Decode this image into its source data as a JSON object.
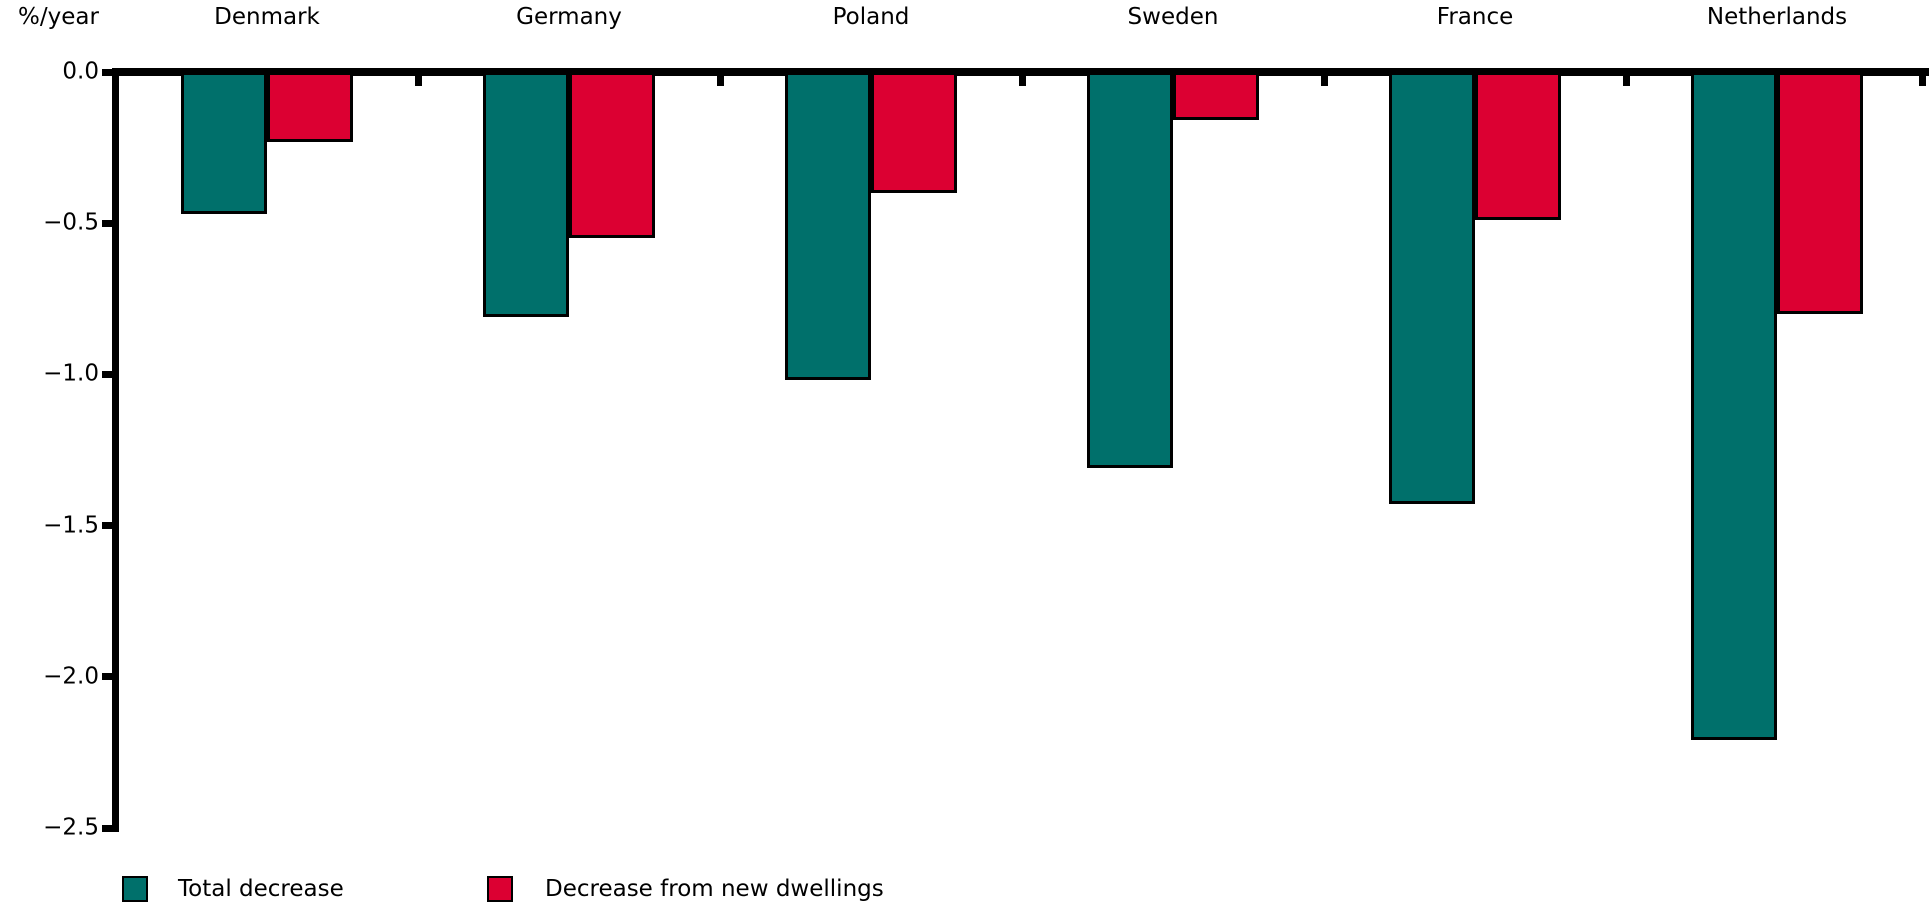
{
  "chart_data": {
    "type": "bar",
    "title": "",
    "ylabel": "%/year",
    "xlabel": "",
    "ylim": [
      -2.5,
      0.0
    ],
    "grid": false,
    "legend_position": "bottom",
    "categories": [
      "Denmark",
      "Germany",
      "Poland",
      "Sweden",
      "France",
      "Netherlands"
    ],
    "series": [
      {
        "name": "Total decrease",
        "color": "#00706B",
        "values": [
          -0.47,
          -0.81,
          -1.02,
          -1.31,
          -1.43,
          -2.21
        ]
      },
      {
        "name": "Decrease from new dwellings",
        "color": "#DC0032",
        "values": [
          -0.23,
          -0.55,
          -0.4,
          -0.16,
          -0.49,
          -0.8
        ]
      }
    ],
    "ytick_labels": [
      "0.0",
      "−0.5",
      "−1.0",
      "−1.5",
      "−2.0",
      "−2.5"
    ],
    "ytick_values": [
      0.0,
      -0.5,
      -1.0,
      -1.5,
      -2.0,
      -2.5
    ]
  }
}
